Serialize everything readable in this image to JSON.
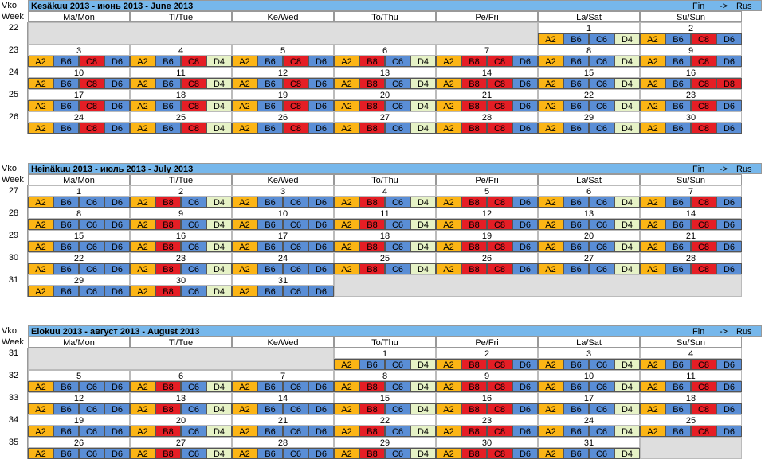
{
  "label_vko": "Vko",
  "label_week": "Week",
  "lang": {
    "fin": "Fin",
    "arrow": "->",
    "rus": "Rus"
  },
  "days": [
    "Ma/Mon",
    "Ti/Tue",
    "Ke/Wed",
    "To/Thu",
    "Pe/Fri",
    "La/Sat",
    "Su/Sun"
  ],
  "shift_colors": {
    "A2": "#FCB515",
    "B6": "#5A8ED6",
    "C6": "#5A8ED6",
    "D6": "#5A8ED6",
    "C8": "#E51E25",
    "B8": "#E51E25",
    "D4": "#E6F2C6"
  },
  "months": [
    {
      "title": "Kesäkuu 2013 - июнь 2013 - June 2013",
      "weeks": [
        {
          "week": "22",
          "days": [
            null,
            null,
            null,
            null,
            null,
            {
              "date": "1",
              "shifts": [
                "A2",
                "B6",
                "C6",
                "D4"
              ]
            },
            {
              "date": "2",
              "shifts": [
                "A2",
                "B6",
                "C8",
                "D6"
              ]
            }
          ]
        },
        {
          "week": "23",
          "days": [
            {
              "date": "3",
              "shifts": [
                "A2",
                "B6",
                "C8",
                "D6"
              ]
            },
            {
              "date": "4",
              "shifts": [
                "A2",
                "B6",
                "C8",
                "D4"
              ]
            },
            {
              "date": "5",
              "shifts": [
                "A2",
                "B6",
                "C8",
                "D6"
              ]
            },
            {
              "date": "6",
              "shifts": [
                "A2",
                "B8",
                "C6",
                "D4"
              ]
            },
            {
              "date": "7",
              "shifts": [
                "A2",
                "B8",
                "C8",
                "D6"
              ]
            },
            {
              "date": "8",
              "shifts": [
                "A2",
                "B6",
                "C6",
                "D4"
              ]
            },
            {
              "date": "9",
              "shifts": [
                "A2",
                "B6",
                "C8",
                "D6"
              ]
            }
          ]
        },
        {
          "week": "24",
          "days": [
            {
              "date": "10",
              "shifts": [
                "A2",
                "B6",
                "C8",
                "D6"
              ]
            },
            {
              "date": "11",
              "shifts": [
                "A2",
                "B6",
                "C8",
                "D4"
              ]
            },
            {
              "date": "12",
              "shifts": [
                "A2",
                "B6",
                "C8",
                "D6"
              ]
            },
            {
              "date": "13",
              "shifts": [
                "A2",
                "B8",
                "C6",
                "D4"
              ]
            },
            {
              "date": "14",
              "shifts": [
                "A2",
                "B8",
                "C8",
                "D6"
              ]
            },
            {
              "date": "15",
              "shifts": [
                "A2",
                "B6",
                "C6",
                "D4"
              ]
            },
            {
              "date": "16",
              "shifts": [
                "A2",
                "B6",
                "C8",
                "D8"
              ]
            }
          ]
        },
        {
          "week": "25",
          "days": [
            {
              "date": "17",
              "shifts": [
                "A2",
                "B6",
                "C8",
                "D6"
              ]
            },
            {
              "date": "18",
              "shifts": [
                "A2",
                "B6",
                "C8",
                "D4"
              ]
            },
            {
              "date": "19",
              "shifts": [
                "A2",
                "B6",
                "C8",
                "D6"
              ]
            },
            {
              "date": "20",
              "shifts": [
                "A2",
                "B8",
                "C6",
                "D4"
              ]
            },
            {
              "date": "21",
              "shifts": [
                "A2",
                "B8",
                "C8",
                "D6"
              ]
            },
            {
              "date": "22",
              "shifts": [
                "A2",
                "B6",
                "C6",
                "D4"
              ]
            },
            {
              "date": "23",
              "shifts": [
                "A2",
                "B6",
                "C8",
                "D6"
              ]
            }
          ]
        },
        {
          "week": "26",
          "days": [
            {
              "date": "24",
              "shifts": [
                "A2",
                "B6",
                "C8",
                "D6"
              ]
            },
            {
              "date": "25",
              "shifts": [
                "A2",
                "B6",
                "C8",
                "D4"
              ]
            },
            {
              "date": "26",
              "shifts": [
                "A2",
                "B6",
                "C8",
                "D6"
              ]
            },
            {
              "date": "27",
              "shifts": [
                "A2",
                "B8",
                "C6",
                "D4"
              ]
            },
            {
              "date": "28",
              "shifts": [
                "A2",
                "B8",
                "C8",
                "D6"
              ]
            },
            {
              "date": "29",
              "shifts": [
                "A2",
                "B6",
                "C6",
                "D4"
              ]
            },
            {
              "date": "30",
              "shifts": [
                "A2",
                "B6",
                "C8",
                "D6"
              ]
            }
          ]
        }
      ]
    },
    {
      "title": "Heinäkuu 2013 - июль 2013 - July 2013",
      "weeks": [
        {
          "week": "27",
          "days": [
            {
              "date": "1",
              "shifts": [
                "A2",
                "B6",
                "C6",
                "D6"
              ]
            },
            {
              "date": "2",
              "shifts": [
                "A2",
                "B8",
                "C6",
                "D4"
              ]
            },
            {
              "date": "3",
              "shifts": [
                "A2",
                "B6",
                "C6",
                "D6"
              ]
            },
            {
              "date": "4",
              "shifts": [
                "A2",
                "B8",
                "C6",
                "D4"
              ]
            },
            {
              "date": "5",
              "shifts": [
                "A2",
                "B8",
                "C8",
                "D6"
              ]
            },
            {
              "date": "6",
              "shifts": [
                "A2",
                "B6",
                "C6",
                "D4"
              ]
            },
            {
              "date": "7",
              "shifts": [
                "A2",
                "B6",
                "C8",
                "D6"
              ]
            }
          ]
        },
        {
          "week": "28",
          "days": [
            {
              "date": "8",
              "shifts": [
                "A2",
                "B6",
                "C6",
                "D6"
              ]
            },
            {
              "date": "9",
              "shifts": [
                "A2",
                "B8",
                "C6",
                "D4"
              ]
            },
            {
              "date": "10",
              "shifts": [
                "A2",
                "B6",
                "C6",
                "D6"
              ]
            },
            {
              "date": "11",
              "shifts": [
                "A2",
                "B8",
                "C6",
                "D4"
              ]
            },
            {
              "date": "12",
              "shifts": [
                "A2",
                "B8",
                "C8",
                "D6"
              ]
            },
            {
              "date": "13",
              "shifts": [
                "A2",
                "B6",
                "C6",
                "D4"
              ]
            },
            {
              "date": "14",
              "shifts": [
                "A2",
                "B6",
                "C8",
                "D6"
              ]
            }
          ]
        },
        {
          "week": "29",
          "days": [
            {
              "date": "15",
              "shifts": [
                "A2",
                "B6",
                "C6",
                "D6"
              ]
            },
            {
              "date": "16",
              "shifts": [
                "A2",
                "B8",
                "C6",
                "D4"
              ]
            },
            {
              "date": "17",
              "shifts": [
                "A2",
                "B6",
                "C6",
                "D6"
              ]
            },
            {
              "date": "18",
              "shifts": [
                "A2",
                "B8",
                "C6",
                "D4"
              ]
            },
            {
              "date": "19",
              "shifts": [
                "A2",
                "B8",
                "C8",
                "D6"
              ]
            },
            {
              "date": "20",
              "shifts": [
                "A2",
                "B6",
                "C6",
                "D4"
              ]
            },
            {
              "date": "21",
              "shifts": [
                "A2",
                "B6",
                "C8",
                "D6"
              ]
            }
          ]
        },
        {
          "week": "30",
          "days": [
            {
              "date": "22",
              "shifts": [
                "A2",
                "B6",
                "C6",
                "D6"
              ]
            },
            {
              "date": "23",
              "shifts": [
                "A2",
                "B8",
                "C6",
                "D4"
              ]
            },
            {
              "date": "24",
              "shifts": [
                "A2",
                "B6",
                "C6",
                "D6"
              ]
            },
            {
              "date": "25",
              "shifts": [
                "A2",
                "B8",
                "C6",
                "D4"
              ]
            },
            {
              "date": "26",
              "shifts": [
                "A2",
                "B8",
                "C8",
                "D6"
              ]
            },
            {
              "date": "27",
              "shifts": [
                "A2",
                "B6",
                "C6",
                "D4"
              ]
            },
            {
              "date": "28",
              "shifts": [
                "A2",
                "B6",
                "C8",
                "D6"
              ]
            }
          ]
        },
        {
          "week": "31",
          "days": [
            {
              "date": "29",
              "shifts": [
                "A2",
                "B6",
                "C6",
                "D6"
              ]
            },
            {
              "date": "30",
              "shifts": [
                "A2",
                "B8",
                "C6",
                "D4"
              ]
            },
            {
              "date": "31",
              "shifts": [
                "A2",
                "B6",
                "C6",
                "D6"
              ]
            },
            null,
            null,
            null,
            null
          ]
        }
      ]
    },
    {
      "title": "Elokuu 2013 - август 2013 - August 2013",
      "weeks": [
        {
          "week": "31",
          "days": [
            null,
            null,
            null,
            {
              "date": "1",
              "shifts": [
                "A2",
                "B6",
                "C6",
                "D4"
              ]
            },
            {
              "date": "2",
              "shifts": [
                "A2",
                "B8",
                "C8",
                "D6"
              ]
            },
            {
              "date": "3",
              "shifts": [
                "A2",
                "B6",
                "C6",
                "D4"
              ]
            },
            {
              "date": "4",
              "shifts": [
                "A2",
                "B6",
                "C8",
                "D6"
              ]
            }
          ]
        },
        {
          "week": "32",
          "days": [
            {
              "date": "5",
              "shifts": [
                "A2",
                "B6",
                "C6",
                "D6"
              ]
            },
            {
              "date": "6",
              "shifts": [
                "A2",
                "B8",
                "C6",
                "D4"
              ]
            },
            {
              "date": "7",
              "shifts": [
                "A2",
                "B6",
                "C6",
                "D6"
              ]
            },
            {
              "date": "8",
              "shifts": [
                "A2",
                "B8",
                "C6",
                "D4"
              ]
            },
            {
              "date": "9",
              "shifts": [
                "A2",
                "B8",
                "C8",
                "D6"
              ]
            },
            {
              "date": "10",
              "shifts": [
                "A2",
                "B6",
                "C6",
                "D4"
              ]
            },
            {
              "date": "11",
              "shifts": [
                "A2",
                "B6",
                "C8",
                "D6"
              ]
            }
          ]
        },
        {
          "week": "33",
          "days": [
            {
              "date": "12",
              "shifts": [
                "A2",
                "B6",
                "C6",
                "D6"
              ]
            },
            {
              "date": "13",
              "shifts": [
                "A2",
                "B8",
                "C6",
                "D4"
              ]
            },
            {
              "date": "14",
              "shifts": [
                "A2",
                "B6",
                "C6",
                "D6"
              ]
            },
            {
              "date": "15",
              "shifts": [
                "A2",
                "B8",
                "C6",
                "D4"
              ]
            },
            {
              "date": "16",
              "shifts": [
                "A2",
                "B8",
                "C8",
                "D6"
              ]
            },
            {
              "date": "17",
              "shifts": [
                "A2",
                "B6",
                "C6",
                "D4"
              ]
            },
            {
              "date": "18",
              "shifts": [
                "A2",
                "B6",
                "C8",
                "D6"
              ]
            }
          ]
        },
        {
          "week": "34",
          "days": [
            {
              "date": "19",
              "shifts": [
                "A2",
                "B6",
                "C6",
                "D6"
              ]
            },
            {
              "date": "20",
              "shifts": [
                "A2",
                "B8",
                "C6",
                "D4"
              ]
            },
            {
              "date": "21",
              "shifts": [
                "A2",
                "B6",
                "C6",
                "D6"
              ]
            },
            {
              "date": "22",
              "shifts": [
                "A2",
                "B8",
                "C6",
                "D4"
              ]
            },
            {
              "date": "23",
              "shifts": [
                "A2",
                "B8",
                "C8",
                "D6"
              ]
            },
            {
              "date": "24",
              "shifts": [
                "A2",
                "B6",
                "C6",
                "D4"
              ]
            },
            {
              "date": "25",
              "shifts": [
                "A2",
                "B6",
                "C8",
                "D6"
              ]
            }
          ]
        },
        {
          "week": "35",
          "days": [
            {
              "date": "26",
              "shifts": [
                "A2",
                "B6",
                "C6",
                "D6"
              ]
            },
            {
              "date": "27",
              "shifts": [
                "A2",
                "B8",
                "C6",
                "D4"
              ]
            },
            {
              "date": "28",
              "shifts": [
                "A2",
                "B6",
                "C6",
                "D6"
              ]
            },
            {
              "date": "29",
              "shifts": [
                "A2",
                "B8",
                "C6",
                "D4"
              ]
            },
            {
              "date": "30",
              "shifts": [
                "A2",
                "B8",
                "C8",
                "D6"
              ]
            },
            {
              "date": "31",
              "shifts": [
                "A2",
                "B6",
                "C6",
                "D4"
              ]
            },
            null
          ]
        }
      ]
    }
  ]
}
